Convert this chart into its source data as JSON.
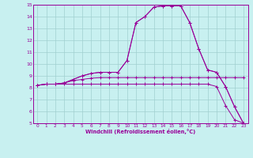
{
  "xlabel": "Windchill (Refroidissement éolien,°C)",
  "bg_color": "#c8f0f0",
  "grid_color": "#a0d0d0",
  "line_color": "#990099",
  "xlim": [
    -0.5,
    23.5
  ],
  "ylim": [
    5,
    15
  ],
  "xticks": [
    0,
    1,
    2,
    3,
    4,
    5,
    6,
    7,
    8,
    9,
    10,
    11,
    12,
    13,
    14,
    15,
    16,
    17,
    18,
    19,
    20,
    21,
    22,
    23
  ],
  "yticks": [
    5,
    6,
    7,
    8,
    9,
    10,
    11,
    12,
    13,
    14,
    15
  ],
  "series": [
    [
      8.2,
      8.3,
      8.3,
      8.3,
      8.3,
      8.3,
      8.3,
      8.3,
      8.3,
      8.3,
      8.3,
      8.3,
      8.3,
      8.3,
      8.3,
      8.3,
      8.3,
      8.3,
      8.3,
      8.3,
      8.1,
      6.5,
      5.3,
      5.0
    ],
    [
      8.2,
      8.3,
      8.3,
      8.4,
      8.6,
      8.7,
      8.8,
      8.85,
      8.85,
      8.85,
      8.85,
      8.85,
      8.85,
      8.85,
      8.85,
      8.85,
      8.85,
      8.85,
      8.85,
      8.85,
      8.85,
      8.85,
      8.85,
      8.85
    ],
    [
      8.2,
      8.3,
      8.3,
      8.4,
      8.7,
      9.0,
      9.2,
      9.3,
      9.3,
      9.3,
      10.3,
      13.5,
      14.0,
      14.8,
      14.9,
      14.9,
      14.9,
      13.5,
      11.3,
      9.5,
      9.3,
      8.1,
      6.4,
      5.0
    ],
    [
      8.2,
      8.3,
      8.3,
      8.4,
      8.7,
      9.0,
      9.2,
      9.3,
      9.3,
      9.3,
      10.3,
      13.5,
      14.0,
      14.8,
      14.9,
      14.9,
      14.9,
      13.5,
      11.3,
      9.5,
      9.3,
      8.1,
      6.4,
      5.0
    ]
  ]
}
